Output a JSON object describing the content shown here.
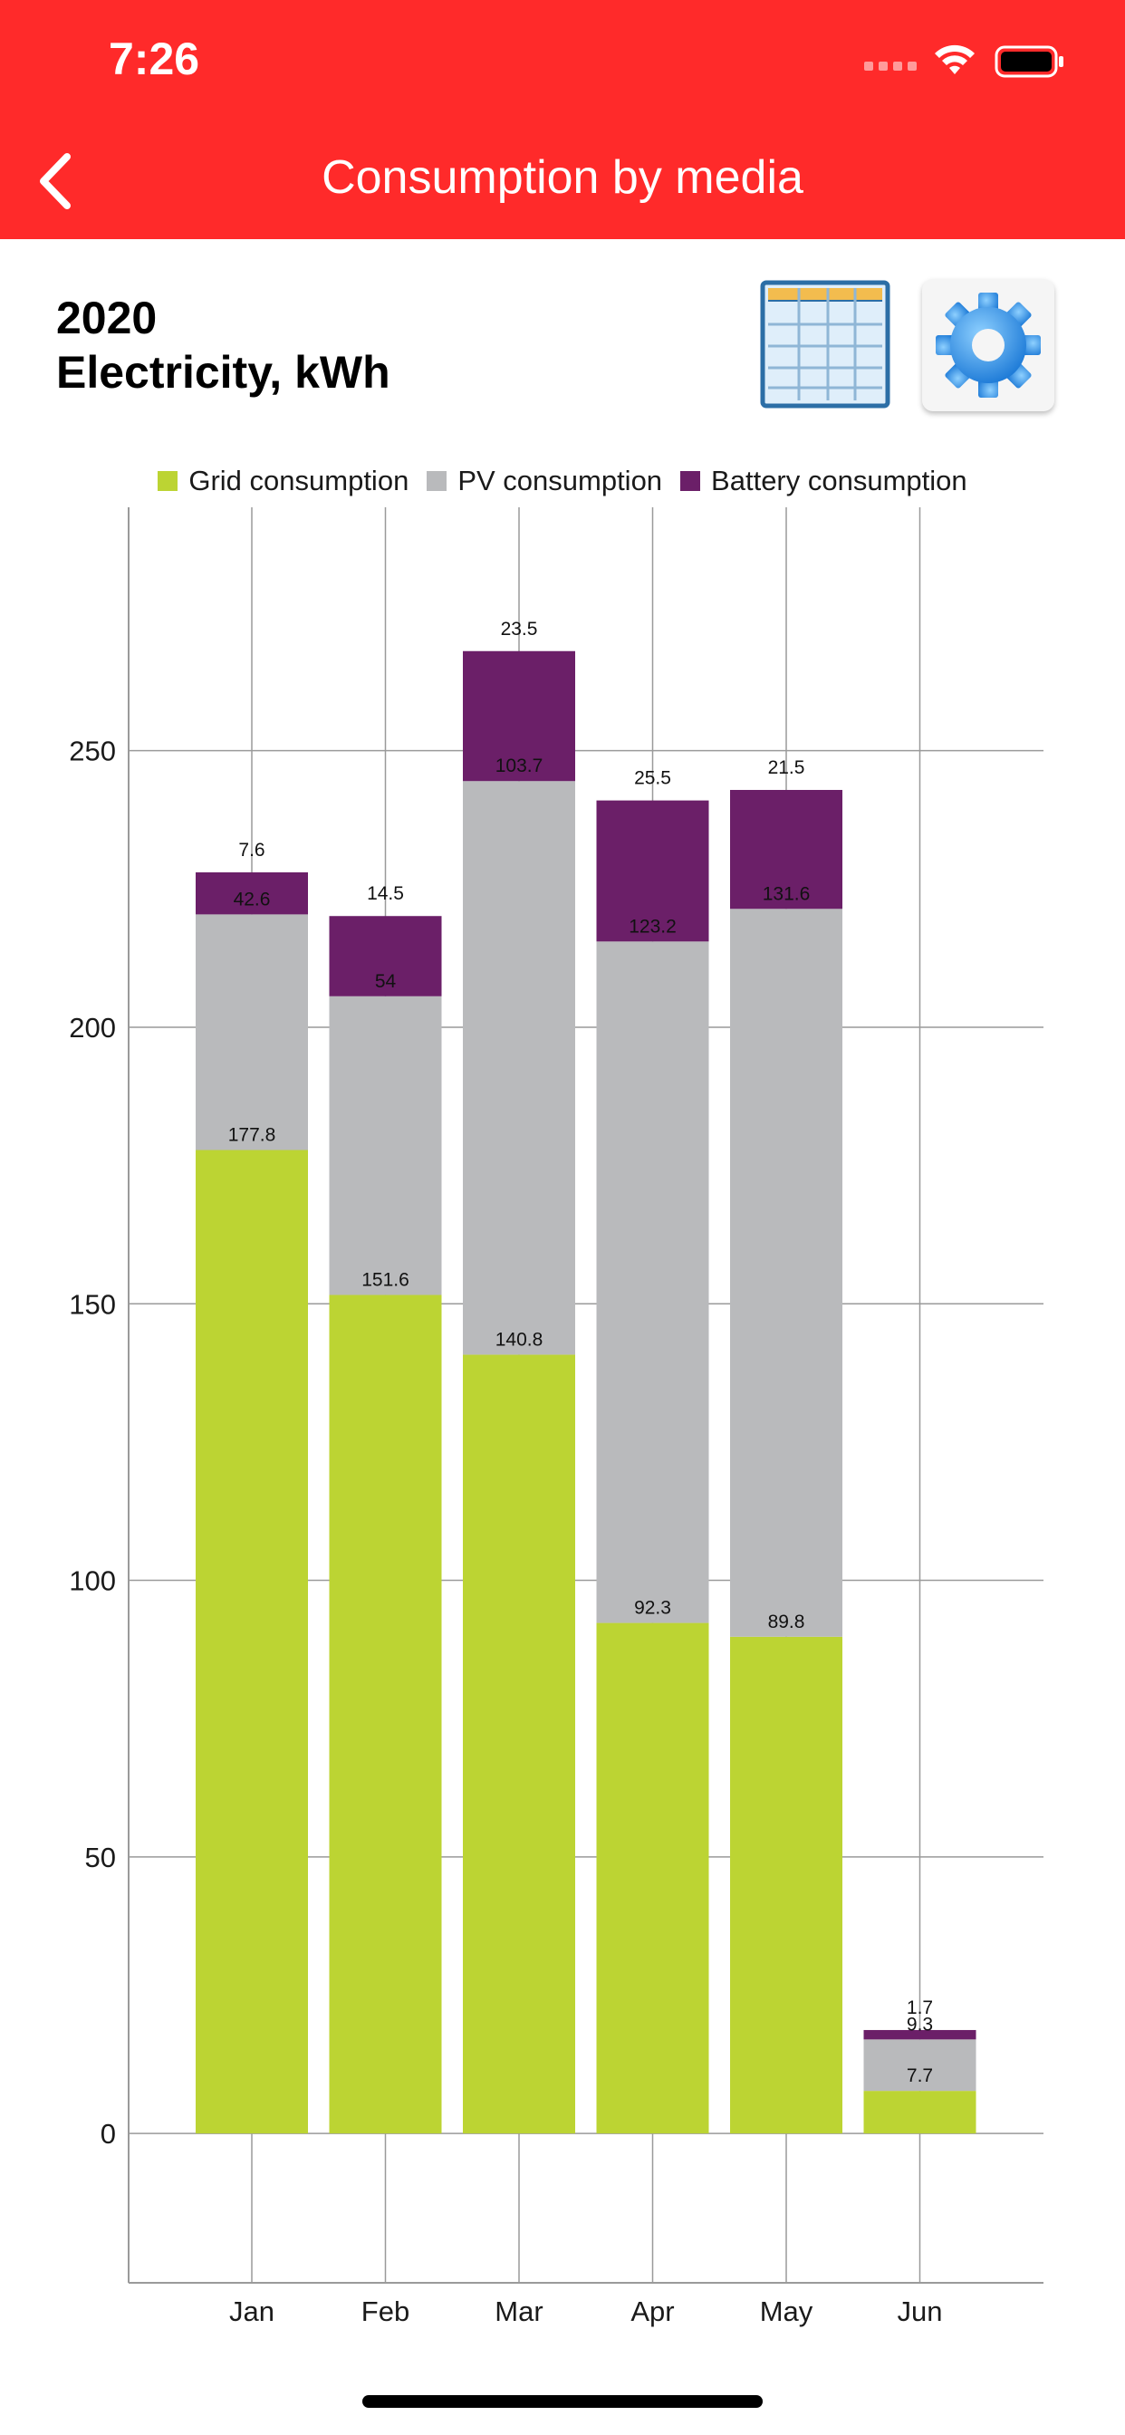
{
  "status_bar": {
    "time": "7:26"
  },
  "nav": {
    "title": "Consumption by media",
    "back_icon": "chevron-left-icon"
  },
  "header": {
    "year": "2020",
    "subtitle": "Electricity, kWh"
  },
  "toolbar": {
    "table_icon": "table-icon",
    "settings_icon": "gear-icon"
  },
  "colors": {
    "navbar": "#ff2a2a",
    "grid": "#bcd433",
    "pv": "#b9babc",
    "battery": "#6b1f68"
  },
  "chart_data": {
    "type": "bar",
    "stacked": true,
    "categories": [
      "Jan",
      "Feb",
      "Mar",
      "Apr",
      "May",
      "Jun"
    ],
    "series": [
      {
        "name": "Grid consumption",
        "color": "#bcd433",
        "values": [
          177.8,
          151.6,
          140.8,
          92.3,
          89.8,
          7.7
        ],
        "labels": [
          "177.8",
          "151.6",
          "140.8",
          "92.3",
          "89.8",
          "7.7"
        ]
      },
      {
        "name": "PV consumption",
        "color": "#b9babc",
        "values": [
          42.6,
          54,
          103.7,
          123.2,
          131.6,
          9.3
        ],
        "labels": [
          "42.6",
          "54",
          "103.7",
          "123.2",
          "131.6",
          "9.3"
        ]
      },
      {
        "name": "Battery consumption",
        "color": "#6b1f68",
        "values": [
          7.6,
          14.5,
          23.5,
          25.5,
          21.5,
          1.7
        ],
        "labels": [
          "7.6",
          "14.5",
          "23.5",
          "25.5",
          "21.5",
          "1.7"
        ]
      }
    ],
    "yticks": [
      "0",
      "50",
      "100",
      "150",
      "200",
      "250"
    ],
    "ylim": [
      -27,
      294
    ],
    "grid": true,
    "legend": "top"
  }
}
